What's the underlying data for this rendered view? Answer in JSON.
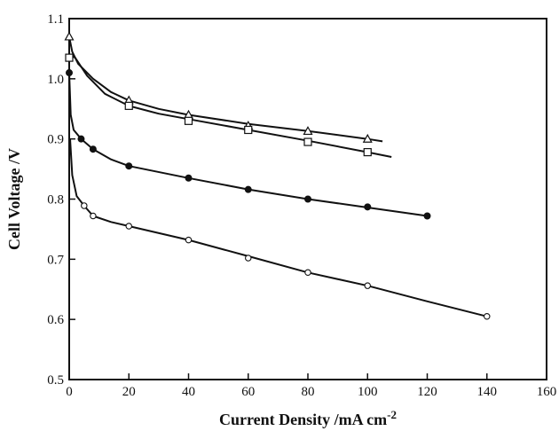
{
  "chart_data": {
    "type": "line",
    "xlabel": "Current Density /mA cm",
    "xlabel_superscript": "-2",
    "ylabel": "Cell Voltage /V",
    "xlim": [
      0,
      160
    ],
    "ylim": [
      0.5,
      1.1
    ],
    "x_ticks": [
      "0",
      "20",
      "40",
      "60",
      "80",
      "100",
      "120",
      "140",
      "160"
    ],
    "y_ticks": [
      "0.5",
      "0.6",
      "0.7",
      "0.8",
      "0.9",
      "1.0",
      "1.1"
    ],
    "grid": false,
    "legend": "none",
    "series": [
      {
        "marker": "triangle-open",
        "curve": [
          [
            0,
            1.07
          ],
          [
            1,
            1.045
          ],
          [
            3,
            1.025
          ],
          [
            8,
            1.0
          ],
          [
            14,
            0.978
          ],
          [
            20,
            0.964
          ],
          [
            30,
            0.95
          ],
          [
            40,
            0.94
          ],
          [
            60,
            0.925
          ],
          [
            80,
            0.913
          ],
          [
            100,
            0.9
          ],
          [
            105,
            0.896
          ]
        ],
        "points": [
          [
            0,
            1.07
          ],
          [
            20,
            0.964
          ],
          [
            40,
            0.94
          ],
          [
            60,
            0.922
          ],
          [
            80,
            0.913
          ],
          [
            100,
            0.9
          ]
        ]
      },
      {
        "marker": "square-open",
        "curve": [
          [
            0,
            1.04
          ],
          [
            2,
            1.035
          ],
          [
            6,
            1.005
          ],
          [
            12,
            0.975
          ],
          [
            20,
            0.955
          ],
          [
            30,
            0.942
          ],
          [
            40,
            0.933
          ],
          [
            60,
            0.915
          ],
          [
            80,
            0.897
          ],
          [
            100,
            0.878
          ],
          [
            108,
            0.87
          ]
        ],
        "points": [
          [
            0,
            1.035
          ],
          [
            20,
            0.955
          ],
          [
            40,
            0.93
          ],
          [
            60,
            0.915
          ],
          [
            80,
            0.895
          ],
          [
            100,
            0.878
          ]
        ]
      },
      {
        "marker": "circle-filled",
        "curve": [
          [
            0,
            1.01
          ],
          [
            0.5,
            0.94
          ],
          [
            1.5,
            0.915
          ],
          [
            4,
            0.9
          ],
          [
            8,
            0.883
          ],
          [
            14,
            0.866
          ],
          [
            20,
            0.855
          ],
          [
            40,
            0.835
          ],
          [
            60,
            0.816
          ],
          [
            80,
            0.8
          ],
          [
            100,
            0.786
          ],
          [
            120,
            0.772
          ]
        ],
        "points": [
          [
            0,
            1.01
          ],
          [
            4,
            0.9
          ],
          [
            8,
            0.883
          ],
          [
            20,
            0.855
          ],
          [
            40,
            0.835
          ],
          [
            60,
            0.816
          ],
          [
            80,
            0.8
          ],
          [
            100,
            0.787
          ],
          [
            120,
            0.772
          ]
        ]
      },
      {
        "marker": "circle-open",
        "curve": [
          [
            0.3,
            0.9
          ],
          [
            1,
            0.84
          ],
          [
            2.5,
            0.805
          ],
          [
            5,
            0.789
          ],
          [
            8,
            0.772
          ],
          [
            14,
            0.762
          ],
          [
            20,
            0.755
          ],
          [
            40,
            0.732
          ],
          [
            60,
            0.705
          ],
          [
            80,
            0.678
          ],
          [
            100,
            0.656
          ],
          [
            120,
            0.63
          ],
          [
            140,
            0.605
          ]
        ],
        "points": [
          [
            5,
            0.789
          ],
          [
            8,
            0.772
          ],
          [
            20,
            0.755
          ],
          [
            40,
            0.732
          ],
          [
            60,
            0.702
          ],
          [
            80,
            0.678
          ],
          [
            100,
            0.656
          ],
          [
            140,
            0.605
          ]
        ]
      }
    ]
  }
}
